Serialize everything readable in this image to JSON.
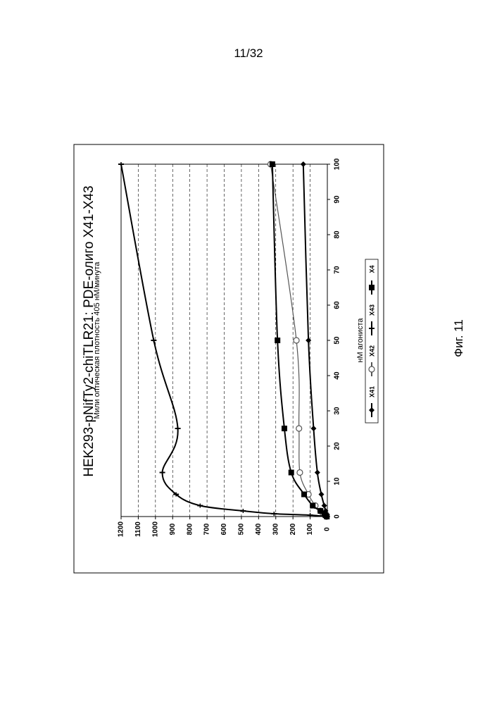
{
  "page": {
    "number": "11/32",
    "caption": "Фиг. 11"
  },
  "chart_data": {
    "type": "line",
    "title": "HEK293-pNifTy2-chiTLR21: PDE-олиго X41-X43",
    "xlabel": "нМ агониста",
    "ylabel": "Мили оптическая плотность 405 нМ/минута",
    "xlim": [
      0,
      100
    ],
    "ylim": [
      0,
      1200
    ],
    "x_ticks": [
      "0",
      "10",
      "20",
      "30",
      "40",
      "50",
      "60",
      "70",
      "80",
      "90",
      "100"
    ],
    "y_ticks": [
      "0",
      "100",
      "200",
      "300",
      "400",
      "500",
      "600",
      "700",
      "800",
      "900",
      "1000",
      "1100",
      "1200"
    ],
    "grid": "horizontal dashed",
    "legend_position": "right",
    "orientation": "rotated 90° counter-clockwise",
    "series": [
      {
        "name": "X41",
        "marker": "diamond",
        "color": "#000000",
        "x": [
          0,
          0.4,
          0.8,
          1.6,
          3.1,
          6.3,
          12.5,
          25,
          50,
          100
        ],
        "y": [
          2,
          4,
          6,
          10,
          18,
          35,
          58,
          80,
          110,
          140
        ]
      },
      {
        "name": "X42",
        "marker": "circle-open",
        "color": "#555555",
        "x": [
          0,
          0.4,
          0.8,
          1.6,
          3.1,
          6.3,
          12.5,
          25,
          50,
          100
        ],
        "y": [
          5,
          15,
          25,
          40,
          70,
          110,
          160,
          165,
          180,
          330
        ]
      },
      {
        "name": "X43",
        "marker": "tick",
        "color": "#000000",
        "x": [
          0,
          0.4,
          0.8,
          1.6,
          3.1,
          6.3,
          12.5,
          25,
          50,
          100
        ],
        "y": [
          10,
          100,
          310,
          490,
          740,
          880,
          960,
          870,
          1010,
          1200
        ]
      },
      {
        "name": "X4",
        "marker": "square",
        "color": "#000000",
        "x": [
          0,
          0.4,
          0.8,
          1.6,
          3.1,
          6.3,
          12.5,
          25,
          50,
          100
        ],
        "y": [
          3,
          10,
          18,
          40,
          85,
          135,
          210,
          250,
          290,
          320
        ]
      }
    ]
  }
}
